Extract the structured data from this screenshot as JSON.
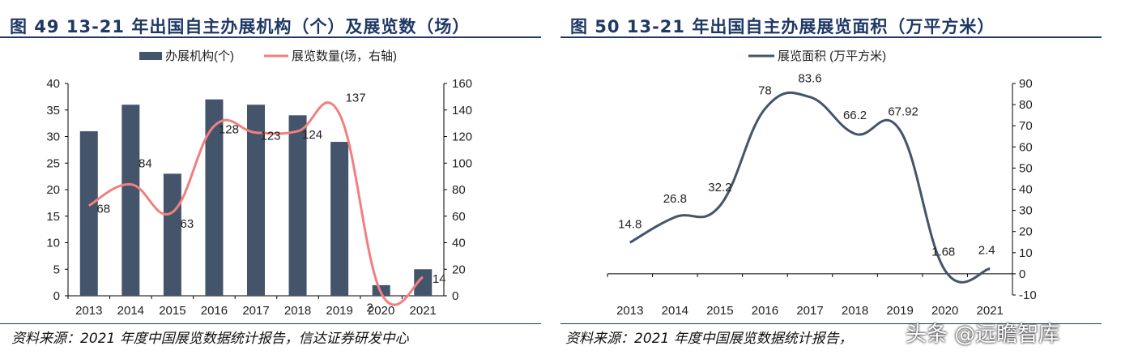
{
  "left": {
    "title": "图 49  13-21 年出国自主办展机构（个）及展览数（场）",
    "source": "资料来源：2021 年度中国展览数据统计报告，信达证券研发中心"
  },
  "right": {
    "title": "图 50  13-21 年出国自主办展展览面积（万平方米）",
    "source": "资料来源：2021 年度中国展览数据统计报告，"
  },
  "watermark": "头条 @远瞻智库",
  "colors": {
    "bar": "#44546a",
    "line_left": "#f08080",
    "line_right": "#44546a",
    "title": "#1f3864"
  },
  "chart_data": [
    {
      "type": "bar",
      "categories": [
        "2013",
        "2014",
        "2015",
        "2016",
        "2017",
        "2018",
        "2019",
        "2020",
        "2021"
      ],
      "series": [
        {
          "name": "办展机构(个)",
          "type": "bar",
          "axis": "left",
          "values": [
            31,
            36,
            23,
            37,
            36,
            34,
            29,
            2,
            5
          ]
        },
        {
          "name": "展览数量(场，右轴)",
          "type": "line",
          "axis": "right",
          "values": [
            68,
            84,
            63,
            128,
            123,
            124,
            137,
            2,
            14
          ]
        }
      ],
      "ylim_left": [
        0,
        40
      ],
      "yticks_left": [
        "0",
        "5",
        "10",
        "15",
        "20",
        "25",
        "30",
        "35",
        "40"
      ],
      "ylim_right": [
        0,
        160
      ],
      "yticks_right": [
        "0",
        "20",
        "40",
        "60",
        "80",
        "100",
        "120",
        "140",
        "160"
      ],
      "legend_position": "top-center"
    },
    {
      "type": "line",
      "categories": [
        "2013",
        "2014",
        "2015",
        "2016",
        "2017",
        "2018",
        "2019",
        "2020",
        "2021"
      ],
      "series": [
        {
          "name": "展览面积 (万平方米)",
          "values": [
            14.8,
            26.8,
            32.2,
            78,
            83.6,
            66.2,
            67.92,
            1.68,
            2.4
          ]
        }
      ],
      "data_labels": [
        "14.8",
        "26.8",
        "32.2",
        "78",
        "83.6",
        "66.2",
        "67.92",
        "1.68",
        "2.4"
      ],
      "ylim": [
        -10,
        90
      ],
      "yticks": [
        "-10",
        "0",
        "10",
        "20",
        "30",
        "40",
        "50",
        "60",
        "70",
        "80",
        "90"
      ],
      "legend_position": "top-center"
    }
  ]
}
